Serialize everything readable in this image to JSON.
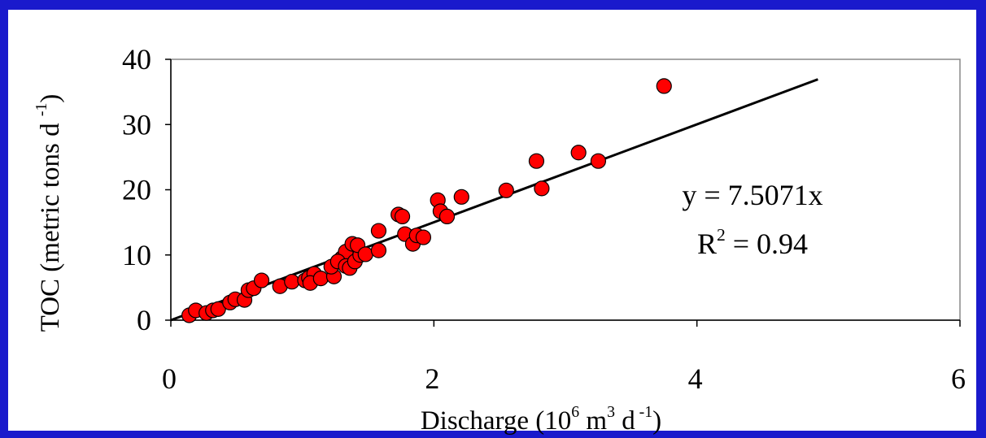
{
  "chart_data": {
    "type": "scatter",
    "x_label": [
      "Discharge (10",
      "6",
      " m",
      "3",
      " d",
      " -1",
      ")"
    ],
    "y_label": [
      "TOC (metric tons d ",
      "-1",
      ")"
    ],
    "annotations": {
      "equation": "y = 7.5071x",
      "r_squared": [
        "R",
        "2",
        " = 0.94"
      ]
    },
    "trendline": {
      "slope": 7.5071,
      "x_range": [
        0,
        4.92
      ],
      "color": "#000000"
    },
    "xlim": [
      0,
      6
    ],
    "xticks": [
      0,
      2,
      4,
      6
    ],
    "ylim": [
      0,
      40
    ],
    "yticks": [
      0,
      10,
      20,
      30,
      40
    ],
    "grid": false,
    "series": [
      {
        "color": "#ff0000",
        "x": [
          0.14,
          0.19,
          0.27,
          0.32,
          0.36,
          0.45,
          0.49,
          0.56,
          0.59,
          0.63,
          0.69,
          0.83,
          0.92,
          1.02,
          1.05,
          1.09,
          1.06,
          1.14,
          1.24,
          1.22,
          1.3,
          1.33,
          1.27,
          1.33,
          1.36,
          1.4,
          1.44,
          1.38,
          1.42,
          1.48,
          1.58,
          1.58,
          1.73,
          1.76,
          1.78,
          1.84,
          1.87,
          1.92,
          2.03,
          2.05,
          2.1,
          2.21,
          2.55,
          2.78,
          2.82,
          3.1,
          3.25,
          3.75
        ],
        "values": [
          0.75,
          1.5,
          1.1,
          1.5,
          1.7,
          2.7,
          3.2,
          3.1,
          4.6,
          4.9,
          6.1,
          5.2,
          5.9,
          6.1,
          6.5,
          7.1,
          5.7,
          6.4,
          6.7,
          8.2,
          9.5,
          10.5,
          9.0,
          8.3,
          8.0,
          9.0,
          10.0,
          11.7,
          11.5,
          10.1,
          10.7,
          13.7,
          16.2,
          15.9,
          13.2,
          11.7,
          13.0,
          12.7,
          18.4,
          16.7,
          15.9,
          18.9,
          19.9,
          24.4,
          20.2,
          25.7,
          24.4,
          35.9
        ]
      }
    ]
  }
}
